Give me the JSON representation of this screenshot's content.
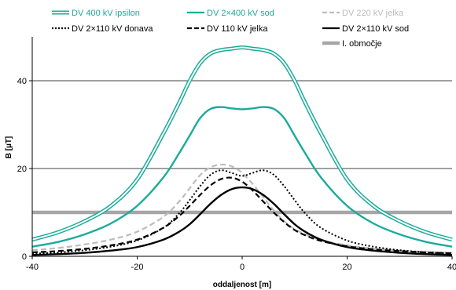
{
  "chart_data": {
    "type": "line",
    "xlabel": "oddaljenost [m]",
    "ylabel": "B [µT]",
    "xlim": [
      -40,
      40
    ],
    "ylim": [
      0,
      50
    ],
    "xticks": [
      -40,
      -20,
      0,
      20,
      40
    ],
    "yticks": [
      0,
      20,
      40
    ],
    "grid": "horizontal",
    "legend_placement": "top",
    "series": [
      {
        "name": "DV 400 kV ipsilon",
        "color": "#1aab9b",
        "style": "double",
        "x": [
          -40,
          -35,
          -30,
          -25,
          -20,
          -15,
          -12,
          -10,
          -8,
          -6,
          -4,
          -2,
          0,
          2,
          4,
          6,
          8,
          10,
          12,
          15,
          20,
          25,
          30,
          35,
          40
        ],
        "y": [
          3.8,
          5.5,
          8.0,
          11.5,
          17.5,
          28.0,
          35.0,
          40.0,
          44.0,
          46.2,
          47.0,
          47.3,
          47.6,
          47.3,
          47.0,
          46.2,
          44.0,
          40.0,
          35.0,
          28.0,
          17.5,
          11.5,
          8.0,
          5.5,
          3.8
        ]
      },
      {
        "name": "DV 2×400 kV sod",
        "color": "#1aab9b",
        "style": "solid",
        "x": [
          -40,
          -35,
          -30,
          -25,
          -20,
          -15,
          -12,
          -10,
          -8,
          -6,
          -4,
          -2,
          0,
          2,
          4,
          6,
          8,
          10,
          12,
          15,
          20,
          25,
          30,
          35,
          40
        ],
        "y": [
          2.2,
          3.3,
          5.0,
          7.5,
          11.5,
          18.0,
          23.5,
          27.5,
          31.5,
          33.6,
          34.0,
          33.7,
          33.5,
          33.7,
          34.0,
          33.6,
          31.5,
          27.5,
          23.5,
          18.0,
          11.5,
          7.5,
          5.0,
          3.3,
          2.2
        ]
      },
      {
        "name": "DV 220 kV jelka",
        "color": "#bdbdbd",
        "style": "dashed",
        "x": [
          -40,
          -35,
          -30,
          -25,
          -20,
          -15,
          -12,
          -10,
          -8,
          -6,
          -4,
          -2,
          0,
          2,
          4,
          6,
          8,
          10,
          12,
          15,
          20,
          25,
          30,
          35,
          40
        ],
        "y": [
          1.4,
          1.9,
          2.7,
          3.8,
          5.6,
          9.0,
          12.5,
          15.5,
          18.5,
          20.3,
          20.9,
          20.5,
          19.0,
          16.5,
          13.5,
          10.5,
          8.0,
          6.2,
          5.0,
          3.7,
          2.5,
          1.8,
          1.3,
          1.0,
          0.8
        ]
      },
      {
        "name": "DV 2×110 kV donava",
        "color": "#000000",
        "style": "dotted",
        "x": [
          -40,
          -35,
          -30,
          -25,
          -20,
          -15,
          -12,
          -10,
          -8,
          -6,
          -4,
          -2,
          0,
          2,
          4,
          6,
          8,
          10,
          12,
          15,
          20,
          25,
          30,
          35,
          40
        ],
        "y": [
          0.6,
          0.9,
          1.4,
          2.2,
          3.6,
          6.5,
          9.8,
          12.8,
          16.0,
          18.6,
          19.6,
          19.0,
          18.3,
          19.0,
          19.6,
          18.6,
          16.0,
          12.8,
          9.8,
          6.5,
          3.6,
          2.2,
          1.4,
          0.9,
          0.6
        ]
      },
      {
        "name": "DV 110 kV jelka",
        "color": "#000000",
        "style": "dashed",
        "x": [
          -40,
          -35,
          -30,
          -25,
          -20,
          -15,
          -12,
          -10,
          -8,
          -6,
          -4,
          -2,
          0,
          2,
          4,
          6,
          8,
          10,
          12,
          15,
          20,
          25,
          30,
          35,
          40
        ],
        "y": [
          0.9,
          1.2,
          1.7,
          2.5,
          3.8,
          6.5,
          9.2,
          11.5,
          14.0,
          16.2,
          17.6,
          17.9,
          17.0,
          15.0,
          12.5,
          10.0,
          7.8,
          6.0,
          4.8,
          3.5,
          2.3,
          1.6,
          1.2,
          0.9,
          0.7
        ]
      },
      {
        "name": "DV 2×110 kV sod",
        "color": "#000000",
        "style": "solid",
        "x": [
          -40,
          -35,
          -30,
          -25,
          -20,
          -15,
          -12,
          -10,
          -8,
          -6,
          -4,
          -2,
          0,
          2,
          4,
          6,
          8,
          10,
          12,
          15,
          20,
          25,
          30,
          35,
          40
        ],
        "y": [
          0.3,
          0.5,
          0.8,
          1.3,
          2.1,
          3.8,
          5.6,
          7.3,
          9.6,
          12.0,
          14.0,
          15.3,
          15.7,
          15.3,
          14.0,
          12.0,
          9.6,
          7.3,
          5.6,
          3.8,
          2.1,
          1.3,
          0.8,
          0.5,
          0.3
        ]
      },
      {
        "name": "I. območje",
        "color": "#a6a6a6",
        "style": "thick",
        "x": [
          -40,
          40
        ],
        "y": [
          10,
          10
        ]
      }
    ]
  }
}
